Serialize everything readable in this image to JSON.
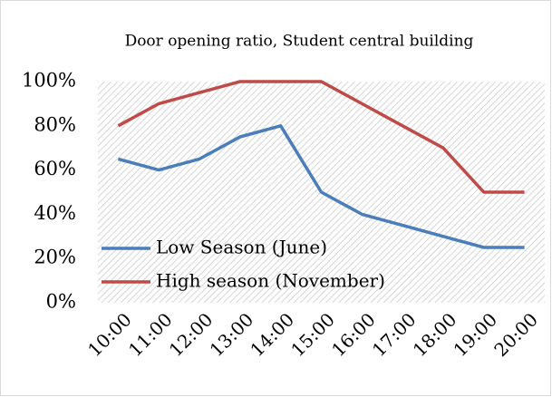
{
  "chart_data": {
    "type": "line",
    "title": "Door opening ratio, Student central building",
    "categories": [
      "10:00",
      "11:00",
      "12:00",
      "13:00",
      "14:00",
      "15:00",
      "16:00",
      "17:00",
      "18:00",
      "19:00",
      "20:00"
    ],
    "series": [
      {
        "name": "Low Season (June)",
        "color": "#4a7ebb",
        "values": [
          65,
          60,
          65,
          75,
          80,
          50,
          40,
          35,
          30,
          25,
          25
        ]
      },
      {
        "name": "High season (November)",
        "color": "#be4b48",
        "values": [
          80,
          90,
          95,
          100,
          100,
          100,
          90,
          80,
          70,
          50,
          50
        ]
      }
    ],
    "ylim": [
      0,
      100
    ],
    "yticks": [
      {
        "value": 0,
        "label": "0%"
      },
      {
        "value": 20,
        "label": "20%"
      },
      {
        "value": 40,
        "label": "40%"
      },
      {
        "value": 60,
        "label": "60%"
      },
      {
        "value": 80,
        "label": "80%"
      },
      {
        "value": 100,
        "label": "100%"
      }
    ],
    "grid": false,
    "legend": "lower left"
  }
}
